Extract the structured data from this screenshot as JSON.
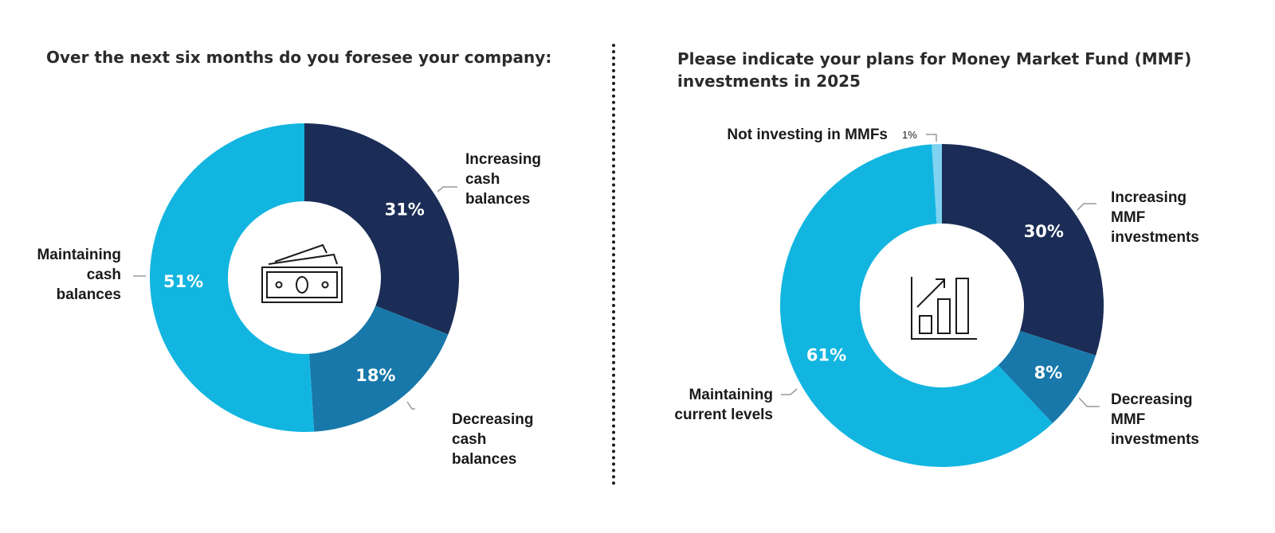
{
  "colors": {
    "dark_navy": "#1b2d56",
    "mid_blue": "#1878aa",
    "cyan": "#12b5e0",
    "light_blue": "#7fd3f0",
    "divider": "#1a1a1a"
  },
  "chart_data": [
    {
      "type": "pie",
      "title": "Over the next six months do you foresee your company:",
      "center_icon": "money-bills-icon",
      "slices": [
        {
          "category": "Increasing cash balances",
          "label_lines": [
            "Increasing",
            "cash",
            "balances"
          ],
          "value": 31,
          "value_label": "31%",
          "color": "#1b2d56"
        },
        {
          "category": "Decreasing cash balances",
          "label_lines": [
            "Decreasing",
            "cash",
            "balances"
          ],
          "value": 18,
          "value_label": "18%",
          "color": "#1878aa"
        },
        {
          "category": "Maintaining cash balances",
          "label_lines": [
            "Maintaining",
            "cash",
            "balances"
          ],
          "value": 51,
          "value_label": "51%",
          "color": "#12b5e0"
        }
      ]
    },
    {
      "type": "pie",
      "title": "Please indicate your plans for Money Market Fund (MMF) investments in 2025",
      "center_icon": "growth-chart-icon",
      "slices": [
        {
          "category": "Increasing MMF investments",
          "label_lines": [
            "Increasing",
            "MMF",
            "investments"
          ],
          "value": 30,
          "value_label": "30%",
          "color": "#1b2d56"
        },
        {
          "category": "Decreasing MMF investments",
          "label_lines": [
            "Decreasing",
            "MMF",
            "investments"
          ],
          "value": 8,
          "value_label": "8%",
          "color": "#1878aa"
        },
        {
          "category": "Maintaining current levels",
          "label_lines": [
            "Maintaining",
            "current levels"
          ],
          "value": 61,
          "value_label": "61%",
          "color": "#12b5e0"
        },
        {
          "category": "Not investing in MMFs",
          "label_lines": [
            "Not investing in MMFs"
          ],
          "value": 1,
          "value_label": "1%",
          "color": "#7fd3f0"
        }
      ]
    }
  ]
}
